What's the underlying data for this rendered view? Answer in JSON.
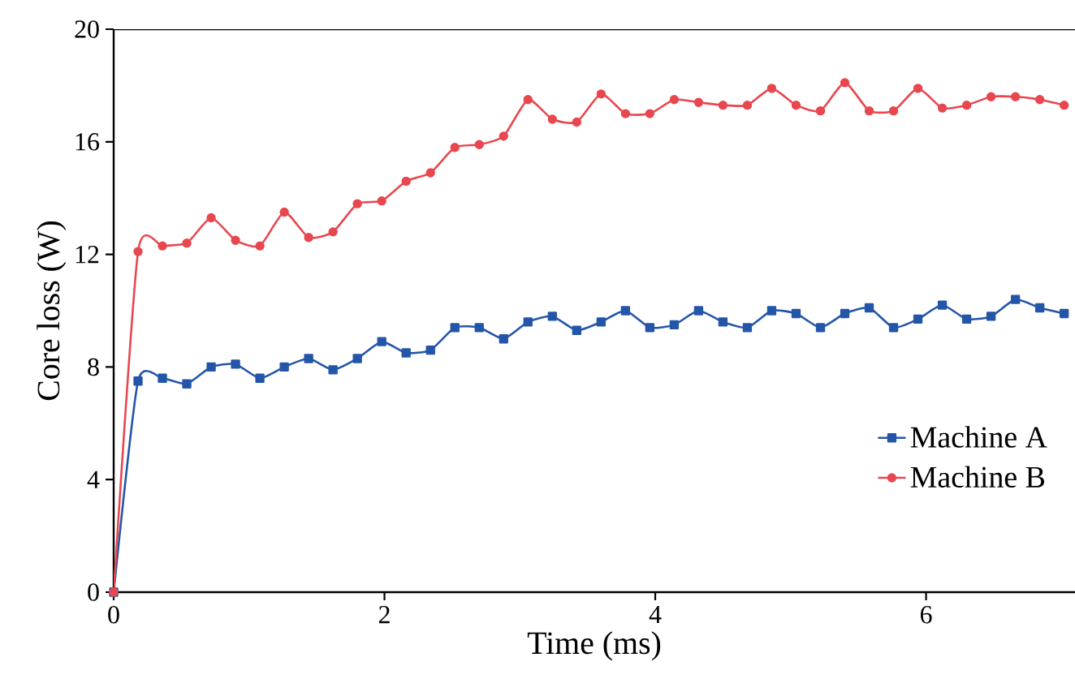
{
  "chart_data": {
    "type": "line",
    "xlabel": "Time (ms)",
    "ylabel": "Core loss (W)",
    "x": [
      0,
      0.18,
      0.36,
      0.54,
      0.72,
      0.9,
      1.08,
      1.26,
      1.44,
      1.62,
      1.8,
      1.98,
      2.16,
      2.34,
      2.52,
      2.7,
      2.88,
      3.06,
      3.24,
      3.42,
      3.6,
      3.78,
      3.96,
      4.14,
      4.32,
      4.5,
      4.68,
      4.86,
      5.04,
      5.22,
      5.4,
      5.58,
      5.76,
      5.94,
      6.12,
      6.3,
      6.48,
      6.66,
      6.84,
      7.02
    ],
    "series": [
      {
        "name": "Machine A",
        "color": "#2356a8",
        "marker": "square",
        "values": [
          0,
          7.5,
          7.6,
          7.4,
          8.0,
          8.1,
          7.6,
          8.0,
          8.3,
          7.9,
          8.3,
          8.9,
          8.5,
          8.6,
          9.4,
          9.4,
          9.0,
          9.6,
          9.8,
          9.3,
          9.6,
          10.0,
          9.4,
          9.5,
          10.0,
          9.6,
          9.4,
          10.0,
          9.9,
          9.4,
          9.9,
          10.1,
          9.4,
          9.7,
          10.2,
          9.7,
          9.8,
          10.4,
          10.1,
          9.9
        ]
      },
      {
        "name": "Machine B",
        "color": "#e8474f",
        "marker": "circle",
        "values": [
          0,
          12.1,
          12.3,
          12.4,
          13.3,
          12.5,
          12.3,
          13.5,
          12.6,
          12.8,
          13.8,
          13.9,
          14.6,
          14.9,
          15.8,
          15.9,
          16.2,
          17.5,
          16.8,
          16.7,
          17.7,
          17.0,
          17.0,
          17.5,
          17.4,
          17.3,
          17.3,
          17.9,
          17.3,
          17.1,
          18.1,
          17.1,
          17.1,
          17.9,
          17.2,
          17.3,
          17.6,
          17.6,
          17.5,
          17.3
        ]
      }
    ],
    "xlim": [
      0,
      7.1
    ],
    "ylim": [
      0,
      20
    ],
    "xticks": [
      0,
      2,
      4,
      6
    ],
    "yticks": [
      0,
      4,
      8,
      12,
      16,
      20
    ],
    "legend": "bottom right",
    "line_style": "solid"
  }
}
